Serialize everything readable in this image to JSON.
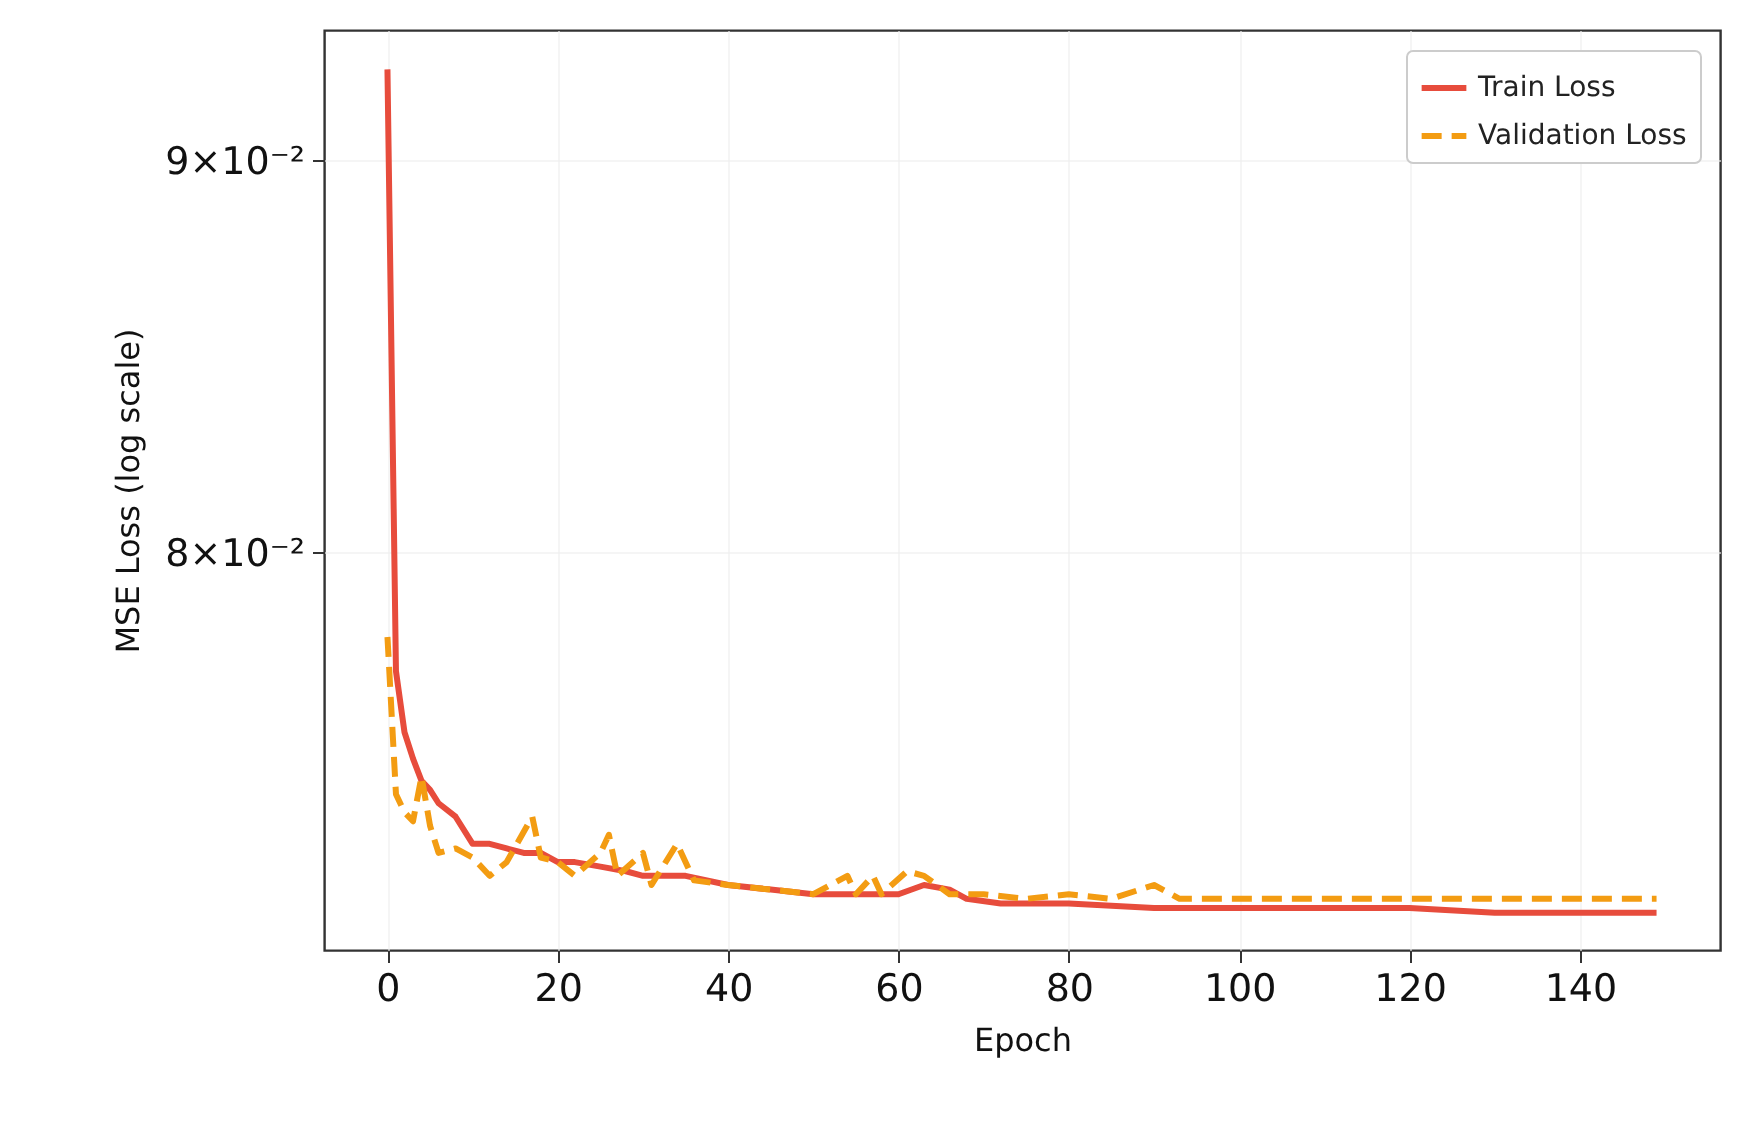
{
  "chart_data": {
    "type": "line",
    "xlabel": "Epoch",
    "ylabel": "MSE Loss (log scale)",
    "log": "y",
    "grid": true,
    "legend": "top right",
    "marker": "none",
    "xlim": [
      -7.45,
      156.45
    ],
    "xticks": [
      0,
      20,
      40,
      60,
      80,
      100,
      120,
      140
    ],
    "ylim": [
      0.071,
      0.0936
    ],
    "yticks": [
      {
        "value": 0.08,
        "label": "8×10⁻²"
      },
      {
        "value": 0.09,
        "label": "9×10⁻²"
      }
    ],
    "series": [
      {
        "name": "Train Loss",
        "color": "#e74c3c",
        "line_style": "solid",
        "x": [
          0,
          1,
          2,
          3,
          4,
          5,
          6,
          8,
          10,
          12,
          14,
          16,
          18,
          20,
          22,
          25,
          28,
          30,
          35,
          40,
          45,
          50,
          55,
          60,
          63,
          66,
          68,
          72,
          80,
          90,
          100,
          110,
          120,
          130,
          140,
          149
        ],
        "values": [
          0.0925,
          0.0772,
          0.0758,
          0.0752,
          0.0747,
          0.0745,
          0.0742,
          0.0739,
          0.0733,
          0.0733,
          0.0732,
          0.0731,
          0.0731,
          0.0729,
          0.0729,
          0.0728,
          0.0727,
          0.0726,
          0.0726,
          0.0724,
          0.0723,
          0.0722,
          0.0722,
          0.0722,
          0.0724,
          0.0723,
          0.0721,
          0.072,
          0.072,
          0.0719,
          0.0719,
          0.0719,
          0.0719,
          0.0718,
          0.0718,
          0.0718
        ]
      },
      {
        "name": "Validation Loss",
        "color": "#f39c12",
        "line_style": "dashed",
        "x": [
          0,
          1,
          2,
          3,
          4,
          5,
          6,
          8,
          10,
          12,
          14,
          17,
          18,
          20,
          22,
          25,
          26,
          27,
          30,
          31,
          33,
          34,
          36,
          40,
          45,
          50,
          54,
          55,
          57,
          58,
          61,
          63,
          66,
          70,
          75,
          80,
          85,
          90,
          93,
          100,
          105,
          110,
          120,
          130,
          140,
          149
        ],
        "values": [
          0.078,
          0.0744,
          0.074,
          0.0738,
          0.0748,
          0.0737,
          0.0731,
          0.0732,
          0.073,
          0.0726,
          0.0729,
          0.0739,
          0.073,
          0.0729,
          0.0726,
          0.0731,
          0.0735,
          0.0726,
          0.0731,
          0.0724,
          0.073,
          0.0733,
          0.0725,
          0.0724,
          0.0723,
          0.0722,
          0.0726,
          0.0722,
          0.0726,
          0.0722,
          0.0727,
          0.0726,
          0.0722,
          0.0722,
          0.0721,
          0.0722,
          0.0721,
          0.0724,
          0.0721,
          0.0721,
          0.0721,
          0.0721,
          0.0721,
          0.0721,
          0.0721,
          0.0721
        ]
      }
    ]
  }
}
